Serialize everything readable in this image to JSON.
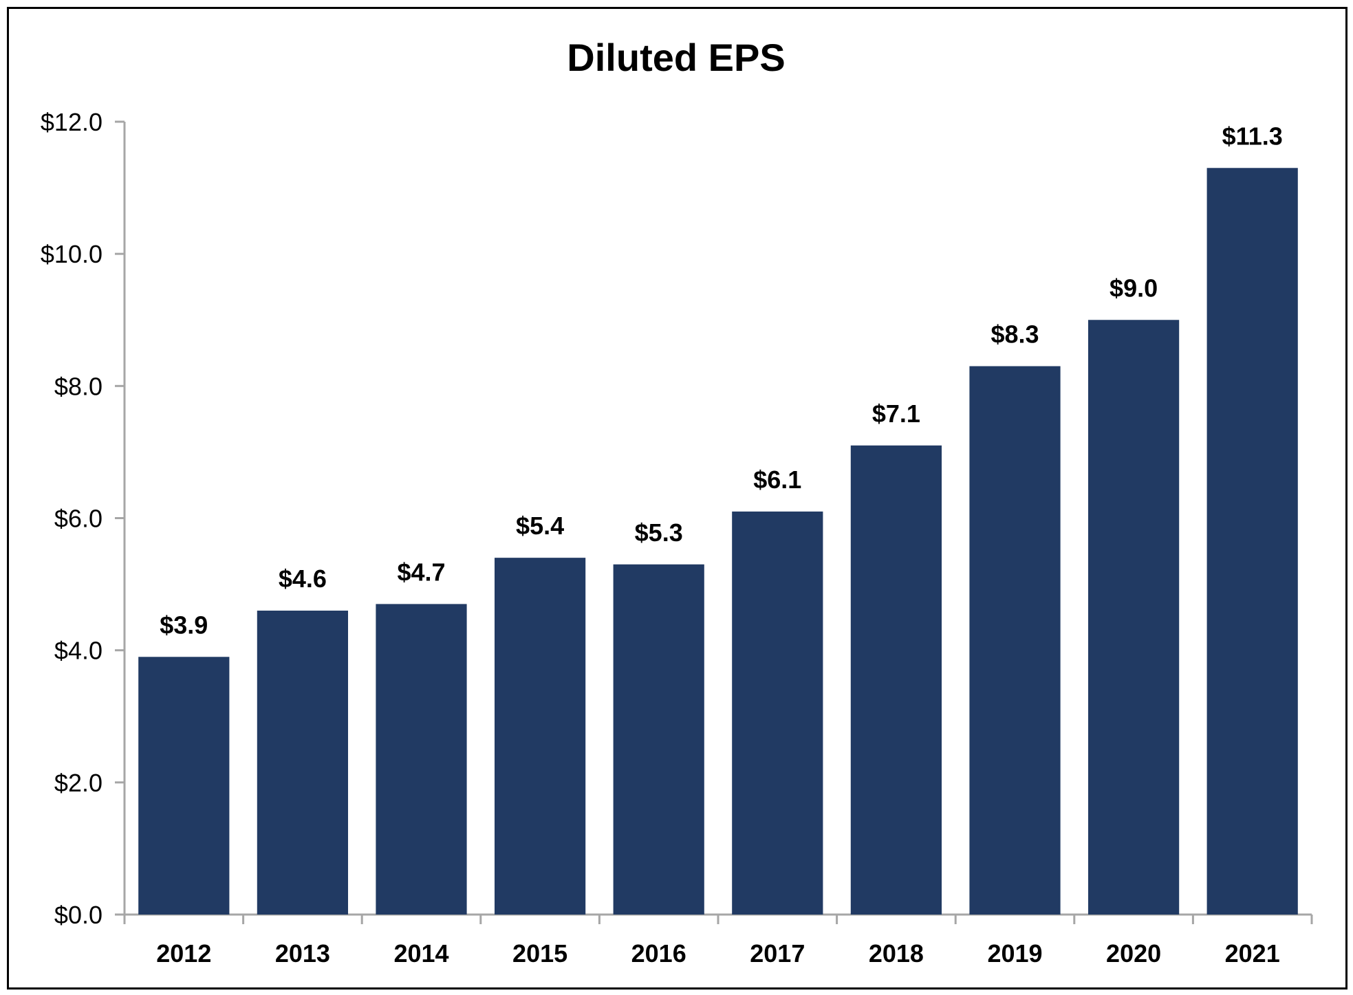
{
  "chart_data": {
    "type": "bar",
    "title": "Diluted EPS",
    "xlabel": "",
    "ylabel": "",
    "categories": [
      "2012",
      "2013",
      "2014",
      "2015",
      "2016",
      "2017",
      "2018",
      "2019",
      "2020",
      "2021"
    ],
    "values": [
      3.9,
      4.6,
      4.7,
      5.4,
      5.3,
      6.1,
      7.1,
      8.3,
      9.0,
      11.3
    ],
    "data_labels": [
      "$3.9",
      "$4.6",
      "$4.7",
      "$5.4",
      "$5.3",
      "$6.1",
      "$7.1",
      "$8.3",
      "$9.0",
      "$11.3"
    ],
    "ylim": [
      0,
      12
    ],
    "yticks": [
      0,
      2,
      4,
      6,
      8,
      10,
      12
    ],
    "ytick_labels": [
      "$0.0",
      "$2.0",
      "$4.0",
      "$6.0",
      "$8.0",
      "$10.0",
      "$12.0"
    ],
    "grid": false,
    "legend": "none",
    "bar_color": "#213A63",
    "axis_color": "#A6A6A6"
  }
}
